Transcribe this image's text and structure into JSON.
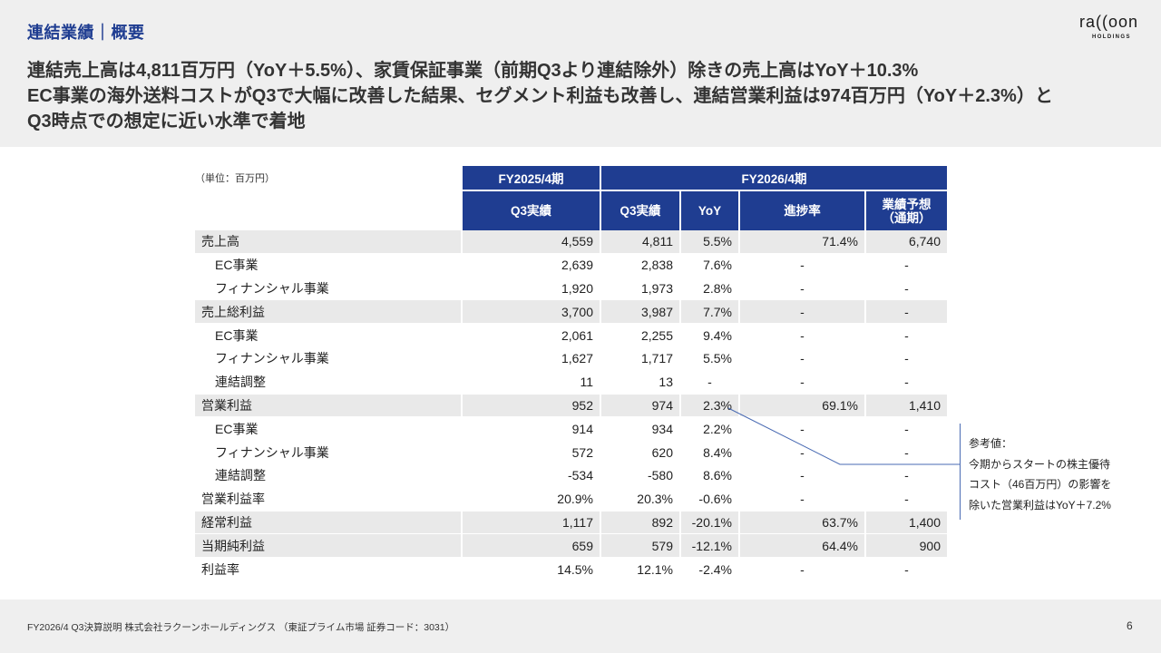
{
  "header": {
    "section_title": "連結業績｜概要",
    "logo": {
      "text": "ra((oon",
      "sub": "HOLDINGS"
    },
    "headline": [
      "連結売上高は4,811百万円（YoY＋5.5%）、家賃保証事業（前期Q3より連結除外）除きの売上高はYoY＋10.3%",
      "EC事業の海外送料コストがQ3で大幅に改善した結果、セグメント利益も改善し、連結営業利益は974百万円（YoY＋2.3%）と",
      "Q3時点での想定に近い水準で着地"
    ]
  },
  "table": {
    "unit_label": "（単位：百万円）",
    "period_prev": "FY2025/4期",
    "period_curr": "FY2026/4期",
    "col_prev_q3": "Q3実績",
    "col_curr_q3": "Q3実績",
    "col_yoy": "YoY",
    "col_progress": "進捗率",
    "col_forecast_l1": "業績予想",
    "col_forecast_l2": "（通期）",
    "rows": [
      {
        "label": "売上高",
        "prev": "4,559",
        "curr": "4,811",
        "yoy": "5.5%",
        "progress": "71.4%",
        "forecast": "6,740"
      },
      {
        "label": "EC事業",
        "prev": "2,639",
        "curr": "2,838",
        "yoy": "7.6%",
        "progress": "-",
        "forecast": "-"
      },
      {
        "label": "フィナンシャル事業",
        "prev": "1,920",
        "curr": "1,973",
        "yoy": "2.8%",
        "progress": "-",
        "forecast": "-"
      },
      {
        "label": "売上総利益",
        "prev": "3,700",
        "curr": "3,987",
        "yoy": "7.7%",
        "progress": "-",
        "forecast": "-"
      },
      {
        "label": "EC事業",
        "prev": "2,061",
        "curr": "2,255",
        "yoy": "9.4%",
        "progress": "-",
        "forecast": "-"
      },
      {
        "label": "フィナンシャル事業",
        "prev": "1,627",
        "curr": "1,717",
        "yoy": "5.5%",
        "progress": "-",
        "forecast": "-"
      },
      {
        "label": "連結調整",
        "prev": "11",
        "curr": "13",
        "yoy": "-",
        "progress": "-",
        "forecast": "-"
      },
      {
        "label": "営業利益",
        "prev": "952",
        "curr": "974",
        "yoy": "2.3%",
        "progress": "69.1%",
        "forecast": "1,410"
      },
      {
        "label": "EC事業",
        "prev": "914",
        "curr": "934",
        "yoy": "2.2%",
        "progress": "-",
        "forecast": "-"
      },
      {
        "label": "フィナンシャル事業",
        "prev": "572",
        "curr": "620",
        "yoy": "8.4%",
        "progress": "-",
        "forecast": "-"
      },
      {
        "label": "連結調整",
        "prev": "-534",
        "curr": "-580",
        "yoy": "8.6%",
        "progress": "-",
        "forecast": "-"
      },
      {
        "label": "営業利益率",
        "prev": "20.9%",
        "curr": "20.3%",
        "yoy": "-0.6%",
        "progress": "-",
        "forecast": "-"
      },
      {
        "label": "経常利益",
        "prev": "1,117",
        "curr": "892",
        "yoy": "-20.1%",
        "progress": "63.7%",
        "forecast": "1,400"
      },
      {
        "label": "当期純利益",
        "prev": "659",
        "curr": "579",
        "yoy": "-12.1%",
        "progress": "64.4%",
        "forecast": "900"
      },
      {
        "label": "利益率",
        "prev": "14.5%",
        "curr": "12.1%",
        "yoy": "-2.4%",
        "progress": "-",
        "forecast": "-"
      }
    ]
  },
  "callout": {
    "lines": [
      "参考値：",
      "今期からスタートの株主優待",
      "コスト（46百万円）の影響を",
      "除いた営業利益はYoY＋7.2%"
    ]
  },
  "footer": {
    "text": "FY2026/4 Q3決算説明 株式会社ラクーンホールディングス （東証プライム市場 証券コード：3031）",
    "page_number": "6"
  },
  "colors": {
    "accent": "#1f3d91",
    "shade": "#e9e9e9",
    "band": "#efefef",
    "leader": "#4a6bb3"
  }
}
